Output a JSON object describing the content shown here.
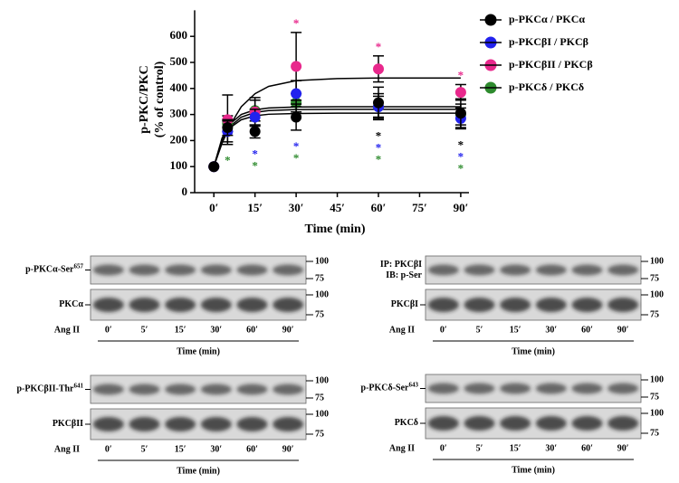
{
  "chart_data": {
    "type": "scatter",
    "y_label": [
      "p-PKC/PKC",
      "(% of control)"
    ],
    "x_label": "Time (min)",
    "x": [
      0,
      5,
      15,
      30,
      60,
      90
    ],
    "xlim": [
      -7,
      93
    ],
    "xticks": [
      {
        "value": 0,
        "label": "0′"
      },
      {
        "value": 15,
        "label": "15′"
      },
      {
        "value": 30,
        "label": "30′"
      },
      {
        "value": 45,
        "label": "45′"
      },
      {
        "value": 60,
        "label": "60′"
      },
      {
        "value": 75,
        "label": "75′"
      },
      {
        "value": 90,
        "label": "90′"
      }
    ],
    "ylim": [
      0,
      700
    ],
    "yticks": [
      0,
      100,
      200,
      300,
      400,
      500,
      600
    ],
    "legend": "right",
    "series": [
      {
        "name": "p-PKCα / PKCα",
        "color": "#000000",
        "values": [
          100,
          250,
          235,
          290,
          345,
          305
        ],
        "errors": [
          null,
          30,
          25,
          50,
          60,
          55
        ],
        "fit": {
          "x": [
            0,
            3,
            6,
            10,
            15,
            20,
            30,
            45,
            60,
            75,
            90
          ],
          "values": [
            100,
            200,
            250,
            280,
            295,
            301,
            304,
            305,
            305,
            305,
            305
          ]
        },
        "significant_x": [
          60,
          90
        ],
        "significance_labels": [
          "*",
          "*"
        ],
        "significance_position": "below"
      },
      {
        "name": "p-PKCβI / PKCβ",
        "color": "#2222ee",
        "values": [
          100,
          235,
          290,
          380,
          330,
          285
        ],
        "errors": [
          null,
          40,
          30,
          50,
          50,
          40
        ],
        "fit": {
          "x": [
            0,
            3,
            6,
            10,
            15,
            20,
            30,
            45,
            60,
            75,
            90
          ],
          "values": [
            100,
            210,
            265,
            300,
            318,
            325,
            329,
            330,
            330,
            330,
            330
          ]
        },
        "significant_x": [
          15,
          30,
          60,
          90
        ],
        "significance_labels": [
          "*",
          "*",
          "*",
          "*"
        ],
        "significance_position": "below"
      },
      {
        "name": "p-PKCβII / PKCβ",
        "color": "#e8288c",
        "values": [
          100,
          280,
          310,
          485,
          475,
          385
        ],
        "errors": [
          null,
          95,
          55,
          130,
          50,
          30
        ],
        "fit": {
          "x": [
            0,
            3,
            6,
            10,
            15,
            20,
            30,
            45,
            60,
            75,
            90
          ],
          "values": [
            100,
            190,
            260,
            330,
            380,
            408,
            430,
            438,
            440,
            440,
            440
          ]
        },
        "significant_x": [
          30,
          60,
          90
        ],
        "significance_labels": [
          "*",
          "*",
          "*"
        ],
        "significance_position": "above"
      },
      {
        "name": "p-PKCδ / PKCδ",
        "color": "#2e8b2e",
        "values": [
          100,
          265,
          315,
          345,
          330,
          300
        ],
        "errors": [
          null,
          30,
          40,
          35,
          40,
          40
        ],
        "fit": {
          "x": [
            0,
            3,
            6,
            10,
            15,
            20,
            30,
            45,
            60,
            75,
            90
          ],
          "values": [
            100,
            205,
            255,
            290,
            308,
            315,
            319,
            320,
            320,
            320,
            320
          ]
        },
        "significant_x": [
          5,
          15,
          30,
          60,
          90
        ],
        "significance_labels": [
          "*",
          "*",
          "*",
          "*",
          "*"
        ],
        "significance_position": "below"
      }
    ]
  },
  "blots": [
    {
      "rows": [
        {
          "label": "p-PKCα-Ser",
          "sup": "657",
          "mw": [
            100,
            75
          ]
        },
        {
          "label": "PKCα",
          "mw": [
            100,
            75
          ]
        }
      ],
      "treatment": "Ang II",
      "lanes": [
        "0′",
        "5′",
        "15′",
        "30′",
        "60′",
        "90′"
      ],
      "axis_label": "Time (min)"
    },
    {
      "rows": [
        {
          "label_lines": [
            "IP: PKCβI",
            "IB: p-Ser"
          ],
          "mw": [
            100,
            75
          ]
        },
        {
          "label": "PKCβI",
          "mw": [
            100,
            75
          ]
        }
      ],
      "treatment": "Ang II",
      "lanes": [
        "0′",
        "5′",
        "15′",
        "30′",
        "60′",
        "90′"
      ],
      "axis_label": "Time (min)"
    },
    {
      "rows": [
        {
          "label": "p-PKCβII-Thr",
          "sup": "641",
          "mw": [
            100,
            75
          ]
        },
        {
          "label": "PKCβII",
          "mw": [
            100,
            75
          ]
        }
      ],
      "treatment": "Ang II",
      "lanes": [
        "0′",
        "5′",
        "15′",
        "30′",
        "60′",
        "90′"
      ],
      "axis_label": "Time (min)"
    },
    {
      "rows": [
        {
          "label": "p-PKCδ-Ser",
          "sup": "643",
          "mw": [
            100,
            75
          ]
        },
        {
          "label": "PKCδ",
          "mw": [
            100,
            75
          ]
        }
      ],
      "treatment": "Ang II",
      "lanes": [
        "0′",
        "5′",
        "15′",
        "30′",
        "60′",
        "90′"
      ],
      "axis_label": "Time (min)"
    }
  ]
}
